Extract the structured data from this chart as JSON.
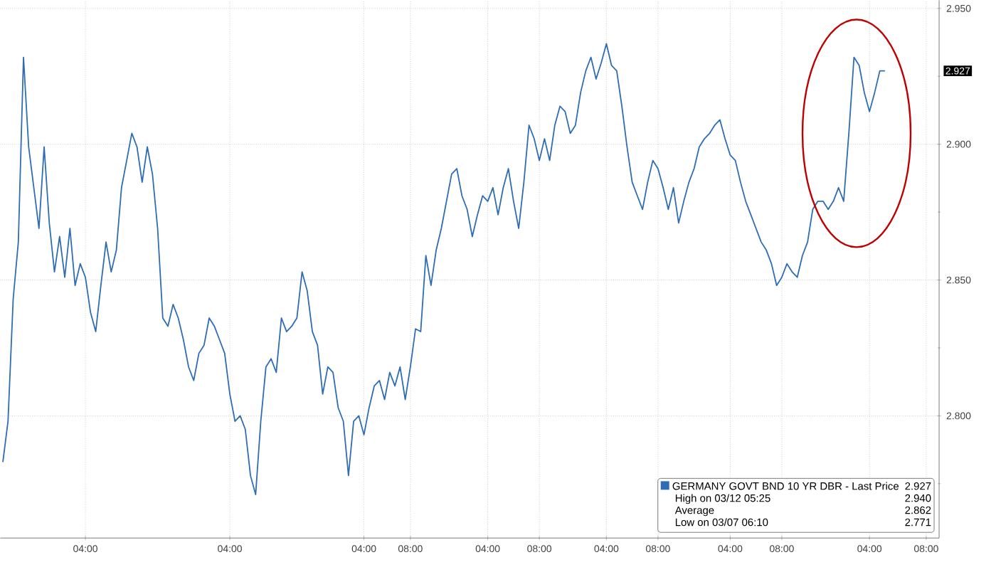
{
  "chart_data": {
    "type": "line",
    "categories": [
      null,
      null,
      null,
      null,
      null,
      null,
      null,
      null,
      null,
      null,
      null,
      null,
      null,
      null,
      null,
      null,
      "04:00",
      null,
      null,
      null,
      null,
      null,
      null,
      null,
      null,
      null,
      null,
      null,
      null,
      null,
      null,
      null,
      null,
      null,
      null,
      null,
      null,
      null,
      null,
      null,
      null,
      null,
      null,
      null,
      "04:00",
      null,
      null,
      null,
      null,
      null,
      null,
      null,
      null,
      null,
      null,
      null,
      null,
      null,
      null,
      null,
      null,
      null,
      null,
      null,
      null,
      null,
      null,
      null,
      null,
      null,
      "04:00",
      null,
      null,
      null,
      null,
      null,
      null,
      null,
      null,
      "08:00",
      null,
      null,
      null,
      null,
      null,
      null,
      null,
      null,
      null,
      null,
      null,
      null,
      null,
      null,
      "04:00",
      null,
      null,
      null,
      null,
      null,
      null,
      null,
      null,
      null,
      "08:00",
      null,
      null,
      null,
      null,
      null,
      null,
      null,
      null,
      null,
      null,
      null,
      null,
      "04:00",
      null,
      null,
      null,
      null,
      null,
      null,
      null,
      null,
      null,
      "08:00",
      null,
      null,
      null,
      null,
      null,
      null,
      null,
      null,
      null,
      null,
      null,
      null,
      null,
      "04:00",
      null,
      null,
      null,
      null,
      null,
      null,
      null,
      null,
      null,
      "08:00",
      null,
      null,
      null,
      null,
      null,
      null,
      null,
      null,
      null,
      null,
      null,
      null,
      null,
      null,
      null,
      null,
      "04:00",
      null,
      null,
      null,
      null,
      null,
      null,
      null,
      null,
      null,
      null,
      "08:00",
      null,
      null
    ],
    "series": [
      {
        "name": "GERMANY GOVT BND 10 YR DBR - Last Price",
        "color": "#2e6db4",
        "values": [
          2.783,
          2.798,
          2.843,
          2.864,
          2.932,
          2.899,
          2.884,
          2.869,
          2.899,
          2.871,
          2.853,
          2.866,
          2.851,
          2.869,
          2.848,
          2.856,
          2.851,
          2.838,
          2.831,
          2.848,
          2.864,
          2.853,
          2.861,
          2.884,
          2.894,
          2.904,
          2.899,
          2.886,
          2.899,
          2.889,
          2.869,
          2.836,
          2.833,
          2.841,
          2.836,
          2.828,
          2.818,
          2.813,
          2.823,
          2.826,
          2.836,
          2.833,
          2.828,
          2.823,
          2.808,
          2.798,
          2.8,
          2.795,
          2.778,
          2.771,
          2.798,
          2.818,
          2.821,
          2.816,
          2.836,
          2.831,
          2.833,
          2.836,
          2.853,
          2.846,
          2.831,
          2.826,
          2.808,
          2.818,
          2.816,
          2.803,
          2.798,
          2.778,
          2.798,
          2.8,
          2.793,
          2.803,
          2.811,
          2.813,
          2.806,
          2.816,
          2.811,
          2.818,
          2.806,
          2.818,
          2.832,
          2.831,
          2.859,
          2.848,
          2.861,
          2.869,
          2.879,
          2.889,
          2.891,
          2.881,
          2.876,
          2.866,
          2.874,
          2.881,
          2.879,
          2.884,
          2.874,
          2.884,
          2.891,
          2.879,
          2.869,
          2.886,
          2.907,
          2.902,
          2.894,
          2.902,
          2.894,
          2.907,
          2.914,
          2.912,
          2.904,
          2.907,
          2.919,
          2.927,
          2.932,
          2.924,
          2.93,
          2.937,
          2.929,
          2.927,
          2.914,
          2.899,
          2.886,
          2.881,
          2.876,
          2.886,
          2.894,
          2.891,
          2.884,
          2.876,
          2.884,
          2.871,
          2.879,
          2.886,
          2.891,
          2.899,
          2.902,
          2.904,
          2.907,
          2.909,
          2.902,
          2.896,
          2.894,
          2.886,
          2.879,
          2.874,
          2.869,
          2.864,
          2.861,
          2.856,
          2.848,
          2.851,
          2.856,
          2.853,
          2.851,
          2.859,
          2.864,
          2.876,
          2.879,
          2.879,
          2.876,
          2.879,
          2.884,
          2.879,
          2.904,
          2.932,
          2.929,
          2.919,
          2.912,
          2.919,
          2.927,
          2.927,
          null,
          null,
          null,
          null,
          null,
          null,
          null,
          null,
          null,
          null
        ]
      }
    ],
    "ylim": [
      2.755,
      2.953
    ],
    "yticks": [
      {
        "value": 2.775,
        "label": null
      },
      {
        "value": 2.8,
        "label": "2.800"
      },
      {
        "value": 2.825,
        "label": null
      },
      {
        "value": 2.85,
        "label": "2.850"
      },
      {
        "value": 2.875,
        "label": null
      },
      {
        "value": 2.9,
        "label": "2.900"
      },
      {
        "value": 2.925,
        "label": null
      },
      {
        "value": 2.95,
        "label": "2.950"
      }
    ],
    "grid": true,
    "legend": "bottom right",
    "annotations": [
      "2.927",
      "2.927",
      "High on 03/12 05:25",
      "2.940",
      "Average",
      "2.862",
      "Low on 03/07 06:10",
      "2.771"
    ]
  }
}
